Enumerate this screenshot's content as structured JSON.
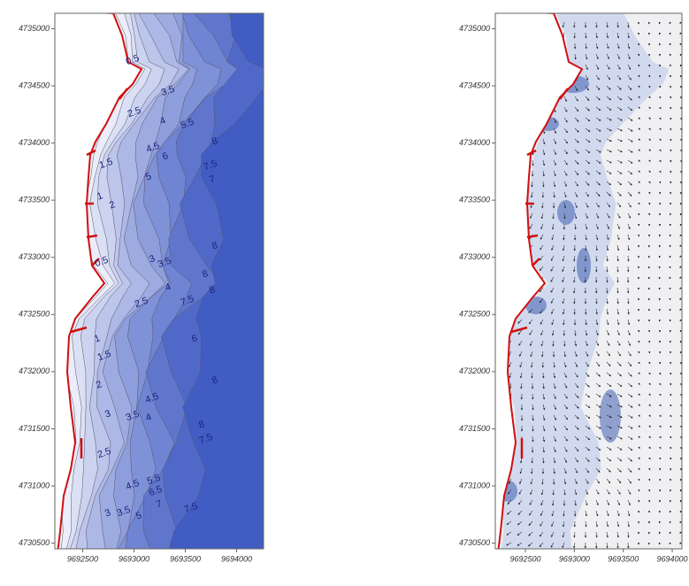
{
  "panels": [
    {
      "xlim": [
        9692229,
        9694263
      ],
      "ylim": [
        4730450,
        4735135
      ],
      "xticks": [
        9692500,
        9693000,
        9693500,
        9694000
      ],
      "yticks": [
        4735000,
        4734500,
        4734000,
        4733500,
        4733000,
        4732500,
        4732000,
        4731500,
        4731000,
        4730500
      ],
      "contour_labels": [
        0.5,
        3.5,
        2.5,
        4,
        5.5,
        8,
        4.5,
        6,
        7.5,
        7,
        1.5,
        5,
        1,
        2,
        8,
        3,
        3.5,
        0.5,
        8,
        8,
        4,
        2.5,
        7.5,
        1,
        1.5,
        6,
        2,
        8,
        4.5,
        3,
        3.5,
        4,
        8,
        2.5,
        7.5,
        5.5,
        6.5,
        4.5,
        7,
        3,
        3.5,
        5,
        7.5
      ]
    },
    {
      "xlim": [
        9692193,
        9694099
      ],
      "ylim": [
        4730450,
        4735135
      ],
      "xticks": [
        9692500,
        9693000,
        9693500,
        9694000
      ],
      "yticks": [
        4735000,
        4734500,
        4734000,
        4733500,
        4733000,
        4732500,
        4732000,
        4731500,
        4731000,
        4730500
      ]
    }
  ]
}
